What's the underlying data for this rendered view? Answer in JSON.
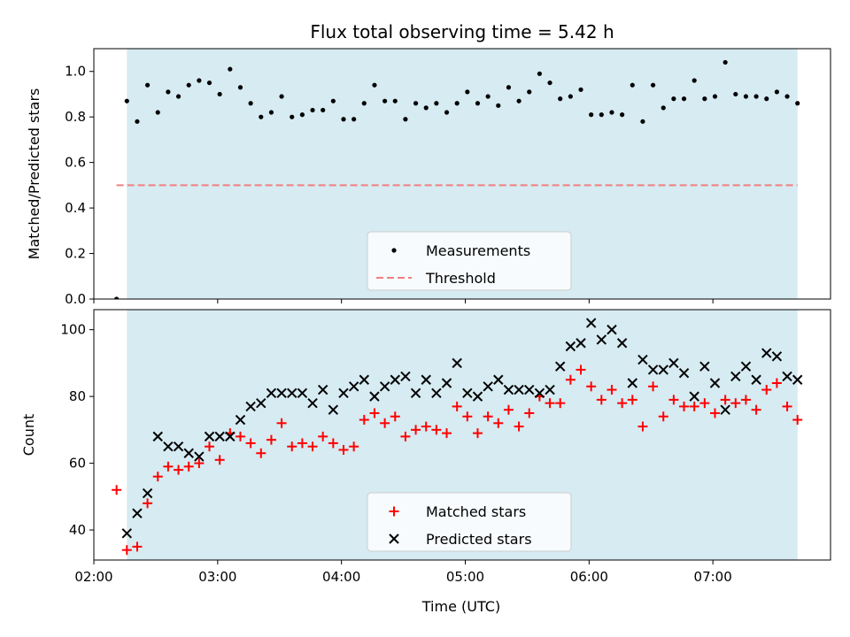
{
  "chart_data": [
    {
      "type": "scatter",
      "title": "Flux total observing time = 5.42 h",
      "ylabel": "Matched/Predicted stars",
      "xlabel": "",
      "xlim": [
        "02:00",
        "07:57"
      ],
      "ylim": [
        0,
        1.1
      ],
      "yticks": [
        "0.0",
        "0.2",
        "0.4",
        "0.6",
        "0.8",
        "1.0"
      ],
      "shaded_interval": [
        "02:16",
        "07:41"
      ],
      "shade_color": "#add8e6",
      "legend_position": "lower-center",
      "series": [
        {
          "name": "Measurements",
          "marker": "dot",
          "color": "#000000",
          "x": [
            "02:11",
            "02:16",
            "02:21",
            "02:26",
            "02:31",
            "02:36",
            "02:41",
            "02:46",
            "02:51",
            "02:56",
            "03:01",
            "03:06",
            "03:11",
            "03:16",
            "03:21",
            "03:26",
            "03:31",
            "03:36",
            "03:41",
            "03:46",
            "03:51",
            "03:56",
            "04:01",
            "04:06",
            "04:11",
            "04:16",
            "04:21",
            "04:26",
            "04:31",
            "04:36",
            "04:41",
            "04:46",
            "04:51",
            "04:56",
            "05:01",
            "05:06",
            "05:11",
            "05:16",
            "05:21",
            "05:26",
            "05:31",
            "05:36",
            "05:41",
            "05:46",
            "05:51",
            "05:56",
            "06:01",
            "06:06",
            "06:11",
            "06:16",
            "06:21",
            "06:26",
            "06:31",
            "06:36",
            "06:41",
            "06:46",
            "06:51",
            "06:56",
            "07:01",
            "07:06",
            "07:11",
            "07:16",
            "07:21",
            "07:26",
            "07:31",
            "07:36",
            "07:41"
          ],
          "y": [
            0.0,
            0.87,
            0.78,
            0.94,
            0.82,
            0.91,
            0.89,
            0.94,
            0.96,
            0.95,
            0.9,
            1.01,
            0.93,
            0.86,
            0.8,
            0.82,
            0.89,
            0.8,
            0.81,
            0.83,
            0.83,
            0.87,
            0.79,
            0.79,
            0.86,
            0.94,
            0.87,
            0.87,
            0.79,
            0.86,
            0.84,
            0.86,
            0.82,
            0.86,
            0.91,
            0.86,
            0.89,
            0.85,
            0.93,
            0.87,
            0.91,
            0.99,
            0.95,
            0.88,
            0.89,
            0.92,
            0.81,
            0.81,
            0.82,
            0.81,
            0.94,
            0.78,
            0.94,
            0.84,
            0.88,
            0.88,
            0.96,
            0.88,
            0.89,
            1.04,
            0.9,
            0.89,
            0.89,
            0.88,
            0.91,
            0.89,
            0.86
          ]
        },
        {
          "name": "Threshold",
          "marker": "dashed-line",
          "color": "#f08080",
          "x": [
            "02:11",
            "07:41"
          ],
          "y": [
            0.5,
            0.5
          ]
        }
      ]
    },
    {
      "type": "scatter",
      "title": "",
      "ylabel": "Count",
      "xlabel": "Time (UTC)",
      "xlim": [
        "02:00",
        "07:57"
      ],
      "ylim": [
        31,
        106
      ],
      "yticks": [
        "40",
        "60",
        "80",
        "100"
      ],
      "xticks": [
        "02:00",
        "03:00",
        "04:00",
        "05:00",
        "06:00",
        "07:00"
      ],
      "shaded_interval": [
        "02:16",
        "07:41"
      ],
      "shade_color": "#add8e6",
      "legend_position": "lower-center",
      "series": [
        {
          "name": "Matched stars",
          "marker": "plus",
          "color": "#ff0000",
          "x": [
            "02:11",
            "02:16",
            "02:21",
            "02:26",
            "02:31",
            "02:36",
            "02:41",
            "02:46",
            "02:51",
            "02:56",
            "03:01",
            "03:06",
            "03:11",
            "03:16",
            "03:21",
            "03:26",
            "03:31",
            "03:36",
            "03:41",
            "03:46",
            "03:51",
            "03:56",
            "04:01",
            "04:06",
            "04:11",
            "04:16",
            "04:21",
            "04:26",
            "04:31",
            "04:36",
            "04:41",
            "04:46",
            "04:51",
            "04:56",
            "05:01",
            "05:06",
            "05:11",
            "05:16",
            "05:21",
            "05:26",
            "05:31",
            "05:36",
            "05:41",
            "05:46",
            "05:51",
            "05:56",
            "06:01",
            "06:06",
            "06:11",
            "06:16",
            "06:21",
            "06:26",
            "06:31",
            "06:36",
            "06:41",
            "06:46",
            "06:51",
            "06:56",
            "07:01",
            "07:06",
            "07:11",
            "07:16",
            "07:21",
            "07:26",
            "07:31",
            "07:36",
            "07:41"
          ],
          "y": [
            52,
            34,
            35,
            48,
            56,
            59,
            58,
            59,
            60,
            65,
            61,
            69,
            68,
            66,
            63,
            67,
            72,
            65,
            66,
            65,
            68,
            66,
            64,
            65,
            73,
            75,
            72,
            74,
            68,
            70,
            71,
            70,
            69,
            77,
            74,
            69,
            74,
            72,
            76,
            71,
            75,
            80,
            78,
            78,
            85,
            88,
            83,
            79,
            82,
            78,
            79,
            71,
            83,
            74,
            79,
            77,
            77,
            78,
            75,
            79,
            78,
            79,
            76,
            82,
            84,
            77,
            73
          ]
        },
        {
          "name": "Predicted stars",
          "marker": "x",
          "color": "#000000",
          "x": [
            "02:16",
            "02:21",
            "02:26",
            "02:31",
            "02:36",
            "02:41",
            "02:46",
            "02:51",
            "02:56",
            "03:01",
            "03:06",
            "03:11",
            "03:16",
            "03:21",
            "03:26",
            "03:31",
            "03:36",
            "03:41",
            "03:46",
            "03:51",
            "03:56",
            "04:01",
            "04:06",
            "04:11",
            "04:16",
            "04:21",
            "04:26",
            "04:31",
            "04:36",
            "04:41",
            "04:46",
            "04:51",
            "04:56",
            "05:01",
            "05:06",
            "05:11",
            "05:16",
            "05:21",
            "05:26",
            "05:31",
            "05:36",
            "05:41",
            "05:46",
            "05:51",
            "05:56",
            "06:01",
            "06:06",
            "06:11",
            "06:16",
            "06:21",
            "06:26",
            "06:31",
            "06:36",
            "06:41",
            "06:46",
            "06:51",
            "06:56",
            "07:01",
            "07:06",
            "07:11",
            "07:16",
            "07:21",
            "07:26",
            "07:31",
            "07:36",
            "07:41"
          ],
          "y": [
            39,
            45,
            51,
            68,
            65,
            65,
            63,
            62,
            68,
            68,
            68,
            73,
            77,
            78,
            81,
            81,
            81,
            81,
            78,
            82,
            76,
            81,
            83,
            85,
            80,
            83,
            85,
            86,
            81,
            85,
            81,
            84,
            90,
            81,
            80,
            83,
            85,
            82,
            82,
            82,
            81,
            82,
            89,
            95,
            96,
            102,
            97,
            100,
            96,
            84,
            91,
            88,
            88,
            90,
            87,
            80,
            89,
            84,
            76,
            86,
            89,
            85,
            93,
            92,
            86,
            85
          ]
        }
      ]
    }
  ]
}
